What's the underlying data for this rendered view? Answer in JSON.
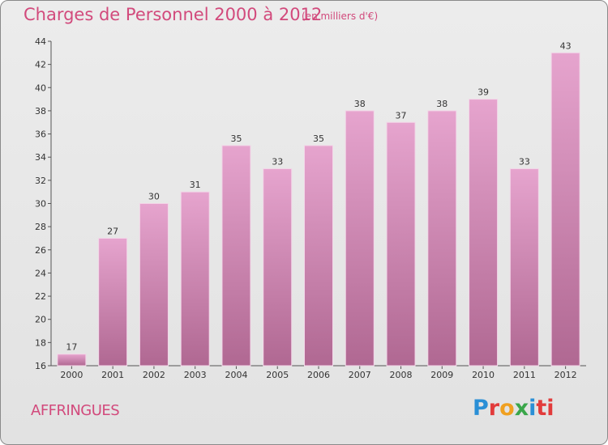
{
  "page": {
    "title": "Charges de Personnel 2000 à 2012",
    "subtitle": "(en milliers d'€)",
    "commune": "AFFRINGUES",
    "logo": [
      "P",
      "r",
      "o",
      "x",
      "i",
      "t",
      "i"
    ]
  },
  "chart_data": {
    "type": "bar",
    "title": "Charges de Personnel 2000 à 2012",
    "subtitle": "(en milliers d'€)",
    "categories": [
      "2000",
      "2001",
      "2002",
      "2003",
      "2004",
      "2005",
      "2006",
      "2007",
      "2008",
      "2009",
      "2010",
      "2011",
      "2012"
    ],
    "values": [
      17,
      27,
      30,
      31,
      35,
      33,
      35,
      38,
      37,
      38,
      39,
      33,
      43
    ],
    "ylim": [
      16,
      44
    ],
    "yticks": [
      16,
      18,
      20,
      22,
      24,
      26,
      28,
      30,
      32,
      34,
      36,
      38,
      40,
      42,
      44
    ],
    "grid": false,
    "bar_color_top": "#e6a4ce",
    "bar_color_bottom": "#b06892",
    "accent_color": "#d24a7c"
  }
}
